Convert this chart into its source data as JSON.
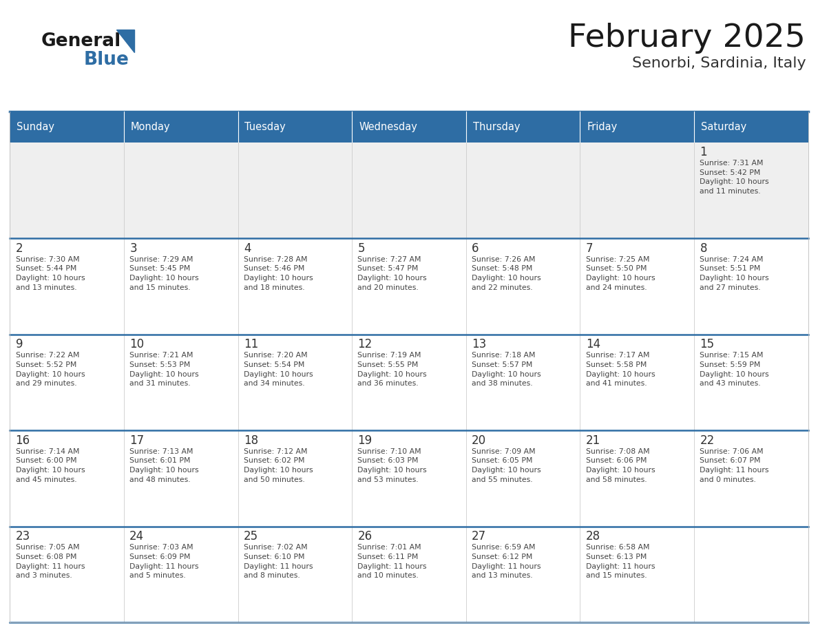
{
  "title": "February 2025",
  "subtitle": "Senorbi, Sardinia, Italy",
  "days_of_week": [
    "Sunday",
    "Monday",
    "Tuesday",
    "Wednesday",
    "Thursday",
    "Friday",
    "Saturday"
  ],
  "header_bg": "#2E6DA4",
  "header_text": "#FFFFFF",
  "cell_bg_week1": "#EFEFEF",
  "cell_bg_normal": "#FFFFFF",
  "cell_border_color": "#CCCCCC",
  "week_sep_color": "#2E6DA4",
  "day_number_color": "#333333",
  "cell_text_color": "#444444",
  "title_color": "#1a1a1a",
  "subtitle_color": "#333333",
  "logo_general_color": "#1a1a1a",
  "logo_blue_color": "#2E6DA4",
  "weeks": [
    [
      {
        "day": null,
        "info": null
      },
      {
        "day": null,
        "info": null
      },
      {
        "day": null,
        "info": null
      },
      {
        "day": null,
        "info": null
      },
      {
        "day": null,
        "info": null
      },
      {
        "day": null,
        "info": null
      },
      {
        "day": 1,
        "info": "Sunrise: 7:31 AM\nSunset: 5:42 PM\nDaylight: 10 hours\nand 11 minutes."
      }
    ],
    [
      {
        "day": 2,
        "info": "Sunrise: 7:30 AM\nSunset: 5:44 PM\nDaylight: 10 hours\nand 13 minutes."
      },
      {
        "day": 3,
        "info": "Sunrise: 7:29 AM\nSunset: 5:45 PM\nDaylight: 10 hours\nand 15 minutes."
      },
      {
        "day": 4,
        "info": "Sunrise: 7:28 AM\nSunset: 5:46 PM\nDaylight: 10 hours\nand 18 minutes."
      },
      {
        "day": 5,
        "info": "Sunrise: 7:27 AM\nSunset: 5:47 PM\nDaylight: 10 hours\nand 20 minutes."
      },
      {
        "day": 6,
        "info": "Sunrise: 7:26 AM\nSunset: 5:48 PM\nDaylight: 10 hours\nand 22 minutes."
      },
      {
        "day": 7,
        "info": "Sunrise: 7:25 AM\nSunset: 5:50 PM\nDaylight: 10 hours\nand 24 minutes."
      },
      {
        "day": 8,
        "info": "Sunrise: 7:24 AM\nSunset: 5:51 PM\nDaylight: 10 hours\nand 27 minutes."
      }
    ],
    [
      {
        "day": 9,
        "info": "Sunrise: 7:22 AM\nSunset: 5:52 PM\nDaylight: 10 hours\nand 29 minutes."
      },
      {
        "day": 10,
        "info": "Sunrise: 7:21 AM\nSunset: 5:53 PM\nDaylight: 10 hours\nand 31 minutes."
      },
      {
        "day": 11,
        "info": "Sunrise: 7:20 AM\nSunset: 5:54 PM\nDaylight: 10 hours\nand 34 minutes."
      },
      {
        "day": 12,
        "info": "Sunrise: 7:19 AM\nSunset: 5:55 PM\nDaylight: 10 hours\nand 36 minutes."
      },
      {
        "day": 13,
        "info": "Sunrise: 7:18 AM\nSunset: 5:57 PM\nDaylight: 10 hours\nand 38 minutes."
      },
      {
        "day": 14,
        "info": "Sunrise: 7:17 AM\nSunset: 5:58 PM\nDaylight: 10 hours\nand 41 minutes."
      },
      {
        "day": 15,
        "info": "Sunrise: 7:15 AM\nSunset: 5:59 PM\nDaylight: 10 hours\nand 43 minutes."
      }
    ],
    [
      {
        "day": 16,
        "info": "Sunrise: 7:14 AM\nSunset: 6:00 PM\nDaylight: 10 hours\nand 45 minutes."
      },
      {
        "day": 17,
        "info": "Sunrise: 7:13 AM\nSunset: 6:01 PM\nDaylight: 10 hours\nand 48 minutes."
      },
      {
        "day": 18,
        "info": "Sunrise: 7:12 AM\nSunset: 6:02 PM\nDaylight: 10 hours\nand 50 minutes."
      },
      {
        "day": 19,
        "info": "Sunrise: 7:10 AM\nSunset: 6:03 PM\nDaylight: 10 hours\nand 53 minutes."
      },
      {
        "day": 20,
        "info": "Sunrise: 7:09 AM\nSunset: 6:05 PM\nDaylight: 10 hours\nand 55 minutes."
      },
      {
        "day": 21,
        "info": "Sunrise: 7:08 AM\nSunset: 6:06 PM\nDaylight: 10 hours\nand 58 minutes."
      },
      {
        "day": 22,
        "info": "Sunrise: 7:06 AM\nSunset: 6:07 PM\nDaylight: 11 hours\nand 0 minutes."
      }
    ],
    [
      {
        "day": 23,
        "info": "Sunrise: 7:05 AM\nSunset: 6:08 PM\nDaylight: 11 hours\nand 3 minutes."
      },
      {
        "day": 24,
        "info": "Sunrise: 7:03 AM\nSunset: 6:09 PM\nDaylight: 11 hours\nand 5 minutes."
      },
      {
        "day": 25,
        "info": "Sunrise: 7:02 AM\nSunset: 6:10 PM\nDaylight: 11 hours\nand 8 minutes."
      },
      {
        "day": 26,
        "info": "Sunrise: 7:01 AM\nSunset: 6:11 PM\nDaylight: 11 hours\nand 10 minutes."
      },
      {
        "day": 27,
        "info": "Sunrise: 6:59 AM\nSunset: 6:12 PM\nDaylight: 11 hours\nand 13 minutes."
      },
      {
        "day": 28,
        "info": "Sunrise: 6:58 AM\nSunset: 6:13 PM\nDaylight: 11 hours\nand 15 minutes."
      },
      {
        "day": null,
        "info": null
      }
    ]
  ],
  "fig_width": 11.88,
  "fig_height": 9.18,
  "dpi": 100
}
